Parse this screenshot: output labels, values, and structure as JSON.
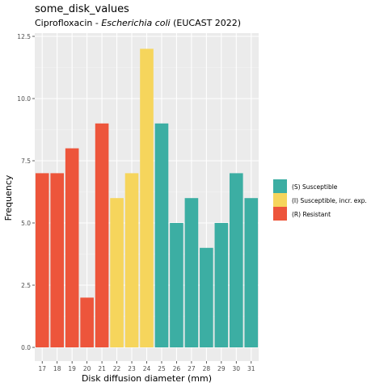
{
  "chart_data": {
    "type": "bar",
    "title": "some_disk_values",
    "subtitle": {
      "before": "Ciprofloxacin - ",
      "italic": "Escherichia coli",
      "after": " (EUCAST 2022)"
    },
    "xlabel": "Disk diffusion diameter (mm)",
    "ylabel": "Frequency",
    "ylim": [
      0,
      12.5
    ],
    "yticks": [
      "0.0",
      "2.5",
      "5.0",
      "7.5",
      "10.0",
      "12.5"
    ],
    "categories": [
      "17",
      "18",
      "19",
      "20",
      "21",
      "22",
      "23",
      "24",
      "25",
      "26",
      "27",
      "28",
      "29",
      "30",
      "31"
    ],
    "values": [
      7,
      7,
      8,
      2,
      9,
      6,
      7,
      12,
      9,
      5,
      6,
      4,
      5,
      7,
      6
    ],
    "groups": [
      "R",
      "R",
      "R",
      "R",
      "R",
      "I",
      "I",
      "I",
      "S",
      "S",
      "S",
      "S",
      "S",
      "S",
      "S"
    ],
    "legend_position": "right",
    "grid": true,
    "legend": [
      {
        "key": "S",
        "label": "(S) Susceptible",
        "color": "#3CAEA3"
      },
      {
        "key": "I",
        "label": "(I) Susceptible, incr. exp.",
        "color": "#F6D55C"
      },
      {
        "key": "R",
        "label": "(R) Resistant",
        "color": "#ED553B"
      }
    ]
  }
}
